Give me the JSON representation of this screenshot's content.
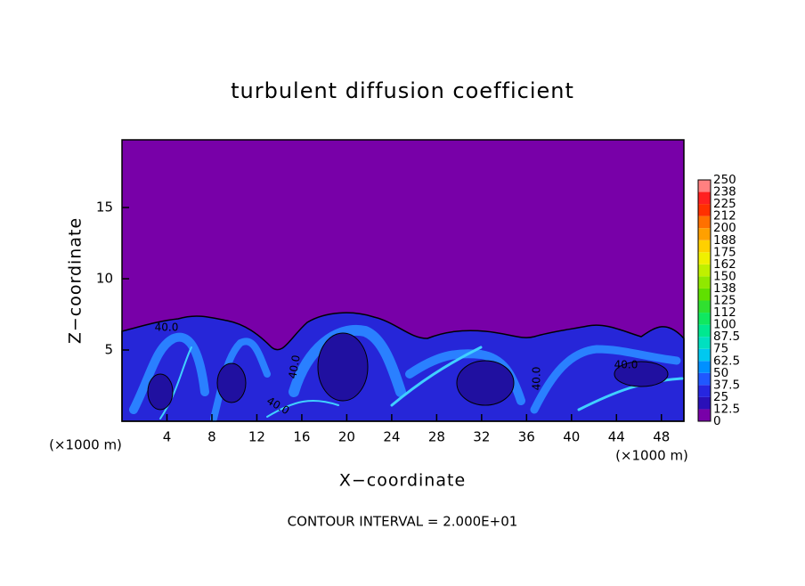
{
  "chart_data": {
    "type": "contour",
    "title": "turbulent diffusion coefficient",
    "xlabel": "X−coordinate",
    "ylabel": "Z−coordinate",
    "x_unit_label": "(×1000 m)",
    "footnote": "CONTOUR INTERVAL = 2.000E+01",
    "xlim": [
      0,
      50
    ],
    "xticks": [
      4,
      8,
      12,
      16,
      20,
      24,
      28,
      32,
      36,
      40,
      44,
      48
    ],
    "ylim": [
      0,
      19.75
    ],
    "yticks": [
      5,
      10,
      15
    ],
    "contour_labels": [
      "40.0",
      "40.0",
      "40.0",
      "40.0",
      "40.0"
    ],
    "colorbar": {
      "levels": [
        0,
        12.5,
        25,
        37.5,
        50,
        62.5,
        75,
        87.5,
        100,
        {
          "value": 112.5,
          "label": "112"
        },
        125,
        {
          "value": 137.5,
          "label": "138"
        },
        150,
        {
          "value": 162.5,
          "label": "162"
        },
        175,
        {
          "value": 187.5,
          "label": "188"
        },
        200,
        {
          "value": 212.5,
          "label": "212"
        },
        225,
        {
          "value": 237.5,
          "label": "238"
        },
        250
      ],
      "colors": [
        "#7800a8",
        "#2a10b8",
        "#2626e0",
        "#2058ff",
        "#0090ff",
        "#00c8f0",
        "#00e0c0",
        "#00e890",
        "#10e860",
        "#30e030",
        "#60e000",
        "#90e800",
        "#c0f000",
        "#f0f000",
        "#ffd000",
        "#ffa000",
        "#ff7000",
        "#ff3000",
        "#ff2020",
        "#ff8080"
      ]
    }
  }
}
